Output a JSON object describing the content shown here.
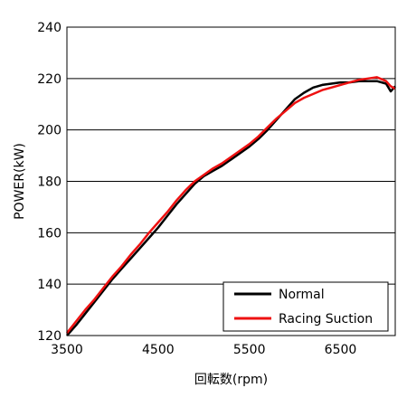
{
  "chart_data": {
    "type": "line",
    "title": "",
    "xlabel": "回転数(rpm)",
    "ylabel": "POWER(kW)",
    "xlim": [
      3500,
      7100
    ],
    "ylim": [
      120,
      240
    ],
    "xticks": [
      3500,
      4500,
      5500,
      6500
    ],
    "yticks": [
      120,
      140,
      160,
      180,
      200,
      220,
      240
    ],
    "grid": "horizontal",
    "legend_position": "bottom-right",
    "series": [
      {
        "name": "Normal",
        "color": "#000000",
        "x": [
          3500,
          3600,
          3700,
          3800,
          3900,
          4000,
          4100,
          4200,
          4300,
          4400,
          4500,
          4600,
          4700,
          4800,
          4900,
          5000,
          5100,
          5200,
          5300,
          5400,
          5500,
          5600,
          5700,
          5800,
          5900,
          6000,
          6100,
          6200,
          6300,
          6400,
          6500,
          6600,
          6700,
          6800,
          6900,
          7000,
          7050,
          7100
        ],
        "y": [
          120,
          124,
          128.5,
          133,
          137.5,
          142,
          146,
          150,
          154,
          158,
          162,
          166.5,
          171,
          175,
          179,
          182,
          184,
          186,
          188.5,
          191,
          193.5,
          196.5,
          200,
          204,
          208,
          212,
          214.5,
          216.5,
          217.5,
          218,
          218.5,
          218.5,
          219,
          219,
          219,
          218,
          215,
          217
        ]
      },
      {
        "name": "Racing Suction",
        "color": "#ee1111",
        "x": [
          3500,
          3600,
          3700,
          3800,
          3900,
          4000,
          4100,
          4200,
          4300,
          4400,
          4500,
          4600,
          4700,
          4800,
          4900,
          5000,
          5100,
          5200,
          5300,
          5400,
          5500,
          5600,
          5700,
          5800,
          5900,
          6000,
          6100,
          6200,
          6300,
          6400,
          6500,
          6600,
          6700,
          6800,
          6900,
          7000,
          7050,
          7100
        ],
        "y": [
          121,
          125.5,
          130,
          134,
          138.5,
          143,
          147,
          151.5,
          155.5,
          160,
          164,
          168,
          172.5,
          176.5,
          180,
          182.5,
          185,
          187,
          189.5,
          192,
          194.5,
          197.5,
          201,
          204.5,
          207.5,
          210.5,
          212.5,
          214,
          215.5,
          216.5,
          217.5,
          218.5,
          219.5,
          220,
          220.5,
          219,
          217,
          216
        ]
      }
    ]
  }
}
